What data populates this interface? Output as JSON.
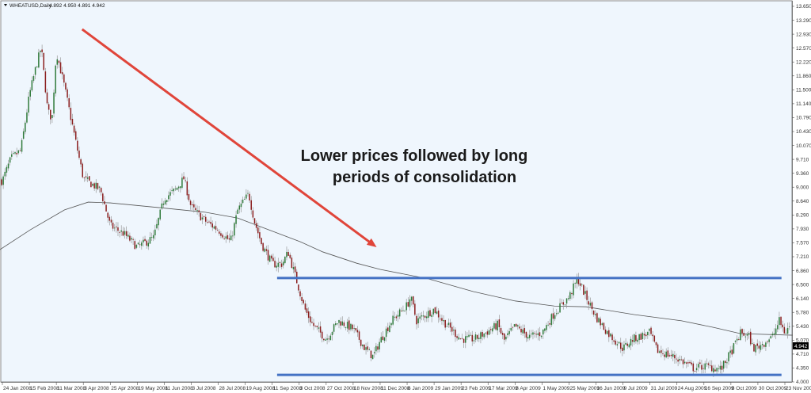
{
  "header": {
    "symbol_label": "WHEATUSD,Daily",
    "ohlc_label": "4.892 4.950 4.891 4.942"
  },
  "current_price_label": "4.942",
  "annotation": {
    "line1": "Lower prices followed by long",
    "line2": "periods of consolidation"
  },
  "colors": {
    "background": "#eff6fd",
    "bull_candle": "#2f7a3a",
    "bear_candle": "#8a1d1d",
    "wick": "#9a9a9a",
    "moving_average": "#555555",
    "support_resistance": "#4472c4",
    "trend_arrow": "#e0453a"
  },
  "chart_data": {
    "type": "candlestick",
    "title": "WHEATUSD,Daily",
    "grid": false,
    "ylim": [
      4.0,
      13.65
    ],
    "y_ticks": [
      "13.650",
      "13.290",
      "12.930",
      "12.570",
      "12.220",
      "11.860",
      "11.500",
      "11.140",
      "10.790",
      "10.430",
      "10.070",
      "9.710",
      "9.360",
      "9.000",
      "8.640",
      "8.290",
      "7.930",
      "7.570",
      "7.210",
      "6.860",
      "6.500",
      "6.140",
      "5.780",
      "5.430",
      "5.070",
      "4.710",
      "4.350",
      "4.000"
    ],
    "x_ticks": [
      "24 Jan 2008",
      "15 Feb 2008",
      "11 Mar 2008",
      "3 Apr 2008",
      "25 Apr 2008",
      "19 May 2008",
      "11 Jun 2008",
      "3 Jul 2008",
      "28 Jul 2008",
      "19 Aug 2008",
      "11 Sep 2008",
      "3 Oct 2008",
      "27 Oct 2008",
      "18 Nov 2008",
      "11 Dec 2008",
      "6 Jan 2009",
      "29 Jan 2009",
      "23 Feb 2009",
      "17 Mar 2009",
      "8 Apr 2009",
      "1 May 2009",
      "25 May 2009",
      "16 Jun 2009",
      "9 Jul 2009",
      "31 Jul 2009",
      "24 Aug 2009",
      "16 Sep 2009",
      "8 Oct 2009",
      "30 Oct 2009",
      "23 Nov 2009"
    ],
    "price_path": [
      [
        "2008-01-24",
        9.17
      ],
      [
        "2008-01-31",
        9.74
      ],
      [
        "2008-02-08",
        9.95
      ],
      [
        "2008-02-15",
        11.37
      ],
      [
        "2008-02-21",
        12.08
      ],
      [
        "2008-02-26",
        12.6
      ],
      [
        "2008-03-03",
        10.96
      ],
      [
        "2008-03-07",
        10.76
      ],
      [
        "2008-03-11",
        12.49
      ],
      [
        "2008-03-18",
        11.57
      ],
      [
        "2008-03-27",
        10.25
      ],
      [
        "2008-04-03",
        9.23
      ],
      [
        "2008-04-17",
        8.93
      ],
      [
        "2008-04-25",
        8.01
      ],
      [
        "2008-05-07",
        7.81
      ],
      [
        "2008-05-19",
        7.46
      ],
      [
        "2008-06-02",
        7.71
      ],
      [
        "2008-06-11",
        8.72
      ],
      [
        "2008-06-20",
        8.93
      ],
      [
        "2008-06-27",
        9.23
      ],
      [
        "2008-07-03",
        8.48
      ],
      [
        "2008-07-17",
        8.11
      ],
      [
        "2008-07-28",
        7.91
      ],
      [
        "2008-08-07",
        7.6
      ],
      [
        "2008-08-13",
        8.42
      ],
      [
        "2008-08-22",
        8.83
      ],
      [
        "2008-08-27",
        8.11
      ],
      [
        "2008-09-02",
        7.54
      ],
      [
        "2008-09-11",
        7.03
      ],
      [
        "2008-09-19",
        7.03
      ],
      [
        "2008-09-24",
        7.34
      ],
      [
        "2008-10-01",
        6.59
      ],
      [
        "2008-10-08",
        5.87
      ],
      [
        "2008-10-15",
        5.47
      ],
      [
        "2008-10-27",
        5.1
      ],
      [
        "2008-11-06",
        5.57
      ],
      [
        "2008-11-18",
        5.36
      ],
      [
        "2008-11-28",
        4.86
      ],
      [
        "2008-12-05",
        4.65
      ],
      [
        "2008-12-11",
        5.06
      ],
      [
        "2008-12-22",
        5.57
      ],
      [
        "2009-01-06",
        5.97
      ],
      [
        "2009-01-09",
        6.18
      ],
      [
        "2009-01-14",
        5.57
      ],
      [
        "2009-01-29",
        5.87
      ],
      [
        "2009-02-06",
        5.57
      ],
      [
        "2009-02-23",
        5.1
      ],
      [
        "2009-03-06",
        5.1
      ],
      [
        "2009-03-17",
        5.3
      ],
      [
        "2009-03-25",
        5.47
      ],
      [
        "2009-03-30",
        5.06
      ],
      [
        "2009-04-08",
        5.43
      ],
      [
        "2009-04-20",
        5.16
      ],
      [
        "2009-05-01",
        5.26
      ],
      [
        "2009-05-12",
        5.77
      ],
      [
        "2009-05-25",
        6.18
      ],
      [
        "2009-06-01",
        6.65
      ],
      [
        "2009-06-08",
        6.18
      ],
      [
        "2009-06-16",
        5.67
      ],
      [
        "2009-06-26",
        5.26
      ],
      [
        "2009-07-09",
        4.86
      ],
      [
        "2009-07-17",
        5.1
      ],
      [
        "2009-07-31",
        5.26
      ],
      [
        "2009-08-06",
        4.81
      ],
      [
        "2009-08-24",
        4.61
      ],
      [
        "2009-09-07",
        4.35
      ],
      [
        "2009-09-16",
        4.41
      ],
      [
        "2009-09-30",
        4.33
      ],
      [
        "2009-10-08",
        4.75
      ],
      [
        "2009-10-16",
        5.26
      ],
      [
        "2009-10-23",
        5.16
      ],
      [
        "2009-10-26",
        4.86
      ],
      [
        "2009-10-30",
        4.9
      ],
      [
        "2009-11-12",
        5.16
      ],
      [
        "2009-11-18",
        5.57
      ],
      [
        "2009-11-23",
        5.26
      ],
      [
        "2009-11-27",
        5.43
      ]
    ],
    "moving_average": [
      [
        "2008-01-22",
        7.4
      ],
      [
        "2008-02-16",
        7.91
      ],
      [
        "2008-03-18",
        8.42
      ],
      [
        "2008-04-07",
        8.62
      ],
      [
        "2008-04-25",
        8.6
      ],
      [
        "2008-06-06",
        8.48
      ],
      [
        "2008-07-16",
        8.36
      ],
      [
        "2008-08-13",
        8.21
      ],
      [
        "2008-09-08",
        7.91
      ],
      [
        "2008-10-04",
        7.6
      ],
      [
        "2008-10-24",
        7.34
      ],
      [
        "2008-11-21",
        7.05
      ],
      [
        "2008-12-11",
        6.89
      ],
      [
        "2009-01-24",
        6.65
      ],
      [
        "2009-03-05",
        6.32
      ],
      [
        "2009-04-08",
        6.08
      ],
      [
        "2009-05-12",
        5.95
      ],
      [
        "2009-06-08",
        5.93
      ],
      [
        "2009-07-18",
        5.73
      ],
      [
        "2009-08-28",
        5.57
      ],
      [
        "2009-09-24",
        5.4
      ],
      [
        "2009-10-16",
        5.24
      ],
      [
        "2009-11-30",
        5.2
      ]
    ],
    "horizontal_lines": [
      {
        "price": 6.67,
        "from": "2008-09-15",
        "to": "2009-11-20"
      },
      {
        "price": 4.18,
        "from": "2008-09-15",
        "to": "2009-11-20"
      }
    ],
    "trend_arrow": {
      "from": [
        "2008-04-02",
        13.06
      ],
      "to": [
        "2008-12-08",
        7.46
      ]
    }
  }
}
